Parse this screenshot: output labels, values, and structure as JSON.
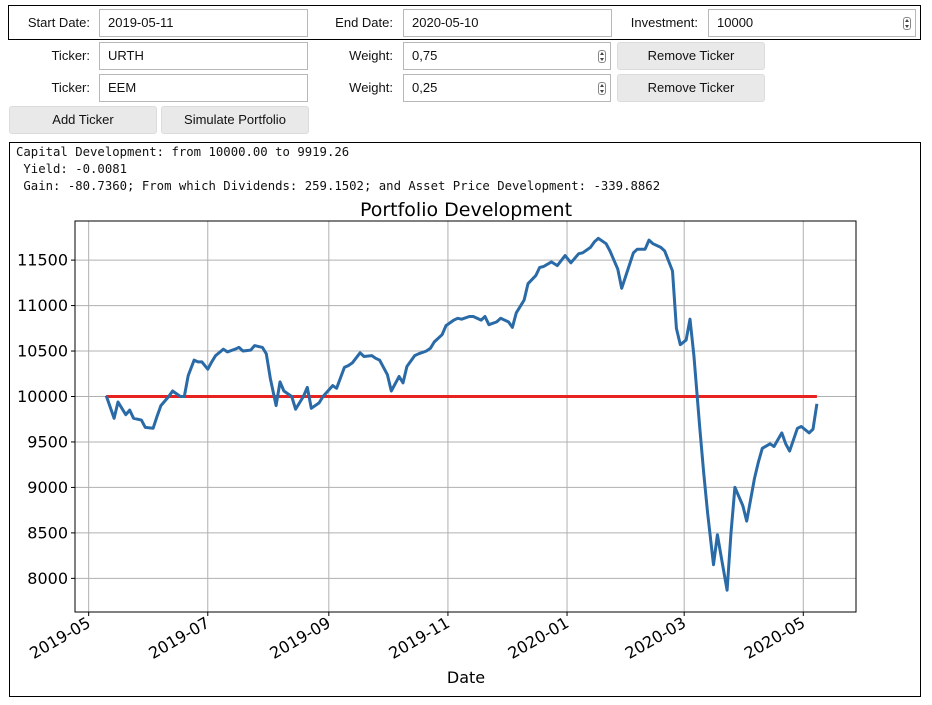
{
  "controls": {
    "start_date": {
      "label": "Start Date:",
      "value": "2019-05-11"
    },
    "end_date": {
      "label": "End Date:",
      "value": "2020-05-10"
    },
    "investment": {
      "label": "Investment:",
      "value": "10000"
    },
    "tickers": [
      {
        "ticker_label": "Ticker:",
        "ticker": "URTH",
        "weight_label": "Weight:",
        "weight": "0,75",
        "remove_label": "Remove Ticker"
      },
      {
        "ticker_label": "Ticker:",
        "ticker": "EEM",
        "weight_label": "Weight:",
        "weight": "0,25",
        "remove_label": "Remove Ticker"
      }
    ],
    "add_ticker_label": "Add Ticker",
    "simulate_label": "Simulate Portfolio"
  },
  "results": {
    "line1": "Capital Development: from 10000.00 to 9919.26",
    "line2": " Yield: -0.0081",
    "line3": " Gain: -80.7360; From which Dividends: 259.1502; and Asset Price Development: -339.8862"
  },
  "chart_data": {
    "type": "line",
    "title": "Portfolio Development",
    "xlabel": "Date",
    "ylabel": "",
    "grid": true,
    "xlim": [
      "2019-04-24",
      "2020-05-28"
    ],
    "ylim": [
      7630,
      11930
    ],
    "xticks": [
      "2019-05",
      "2019-07",
      "2019-09",
      "2019-11",
      "2020-01",
      "2020-03",
      "2020-05"
    ],
    "yticks": [
      8000,
      8500,
      9000,
      9500,
      10000,
      10500,
      11000,
      11500
    ],
    "colors": {
      "portfolio": "#2a6aa6",
      "baseline": "#e8231f"
    },
    "series": [
      {
        "name": "",
        "x": [
          "2019-05-10",
          "2019-05-14",
          "2019-05-16",
          "2019-05-20",
          "2019-05-22",
          "2019-05-24",
          "2019-05-28",
          "2019-05-30",
          "2019-06-03",
          "2019-06-05",
          "2019-06-07",
          "2019-06-11",
          "2019-06-13",
          "2019-06-17",
          "2019-06-19",
          "2019-06-21",
          "2019-06-24",
          "2019-06-26",
          "2019-06-28",
          "2019-07-01",
          "2019-07-03",
          "2019-07-05",
          "2019-07-09",
          "2019-07-11",
          "2019-07-15",
          "2019-07-17",
          "2019-07-19",
          "2019-07-23",
          "2019-07-25",
          "2019-07-29",
          "2019-07-31",
          "2019-08-02",
          "2019-08-05",
          "2019-08-07",
          "2019-08-09",
          "2019-08-13",
          "2019-08-15",
          "2019-08-19",
          "2019-08-21",
          "2019-08-23",
          "2019-08-27",
          "2019-08-29",
          "2019-09-03",
          "2019-09-05",
          "2019-09-09",
          "2019-09-11",
          "2019-09-13",
          "2019-09-17",
          "2019-09-19",
          "2019-09-23",
          "2019-09-25",
          "2019-09-27",
          "2019-10-01",
          "2019-10-03",
          "2019-10-07",
          "2019-10-09",
          "2019-10-11",
          "2019-10-15",
          "2019-10-17",
          "2019-10-21",
          "2019-10-23",
          "2019-10-25",
          "2019-10-29",
          "2019-10-31",
          "2019-11-04",
          "2019-11-06",
          "2019-11-08",
          "2019-11-12",
          "2019-11-14",
          "2019-11-18",
          "2019-11-20",
          "2019-11-22",
          "2019-11-26",
          "2019-11-28",
          "2019-12-02",
          "2019-12-04",
          "2019-12-06",
          "2019-12-10",
          "2019-12-12",
          "2019-12-16",
          "2019-12-18",
          "2019-12-20",
          "2019-12-24",
          "2019-12-27",
          "2019-12-31",
          "2020-01-03",
          "2020-01-07",
          "2020-01-09",
          "2020-01-13",
          "2020-01-15",
          "2020-01-17",
          "2020-01-21",
          "2020-01-23",
          "2020-01-27",
          "2020-01-29",
          "2020-01-31",
          "2020-02-04",
          "2020-02-06",
          "2020-02-10",
          "2020-02-12",
          "2020-02-14",
          "2020-02-18",
          "2020-02-20",
          "2020-02-24",
          "2020-02-26",
          "2020-02-28",
          "2020-03-02",
          "2020-03-04",
          "2020-03-06",
          "2020-03-09",
          "2020-03-11",
          "2020-03-13",
          "2020-03-16",
          "2020-03-18",
          "2020-03-20",
          "2020-03-23",
          "2020-03-25",
          "2020-03-27",
          "2020-03-31",
          "2020-04-02",
          "2020-04-06",
          "2020-04-08",
          "2020-04-10",
          "2020-04-14",
          "2020-04-16",
          "2020-04-20",
          "2020-04-22",
          "2020-04-24",
          "2020-04-28",
          "2020-04-30",
          "2020-05-04",
          "2020-05-06",
          "2020-05-08"
        ],
        "values": [
          10010,
          9760,
          9940,
          9800,
          9850,
          9760,
          9740,
          9660,
          9650,
          9780,
          9900,
          10000,
          10060,
          10000,
          10000,
          10230,
          10400,
          10380,
          10380,
          10300,
          10380,
          10450,
          10520,
          10490,
          10520,
          10540,
          10500,
          10510,
          10560,
          10540,
          10470,
          10200,
          9900,
          10160,
          10060,
          10000,
          9860,
          10000,
          10100,
          9870,
          9930,
          10000,
          10120,
          10090,
          10320,
          10340,
          10370,
          10480,
          10440,
          10450,
          10420,
          10400,
          10240,
          10060,
          10220,
          10150,
          10330,
          10450,
          10470,
          10500,
          10530,
          10600,
          10680,
          10780,
          10840,
          10860,
          10850,
          10880,
          10880,
          10840,
          10880,
          10790,
          10820,
          10860,
          10820,
          10760,
          10920,
          11060,
          11240,
          11330,
          11420,
          11430,
          11480,
          11440,
          11550,
          11470,
          11570,
          11580,
          11640,
          11700,
          11740,
          11680,
          11600,
          11400,
          11190,
          11320,
          11580,
          11620,
          11620,
          11720,
          11680,
          11640,
          11600,
          11380,
          10750,
          10570,
          10620,
          10850,
          10450,
          9650,
          9160,
          8720,
          8150,
          8480,
          8230,
          7870,
          8500,
          9000,
          8800,
          8630,
          9100,
          9280,
          9430,
          9480,
          9450,
          9600,
          9480,
          9400,
          9650,
          9670,
          9600,
          9640,
          9920
        ]
      },
      {
        "name": "",
        "x": [
          "2019-05-10",
          "2020-05-08"
        ],
        "values": [
          10000,
          10000
        ]
      }
    ]
  }
}
